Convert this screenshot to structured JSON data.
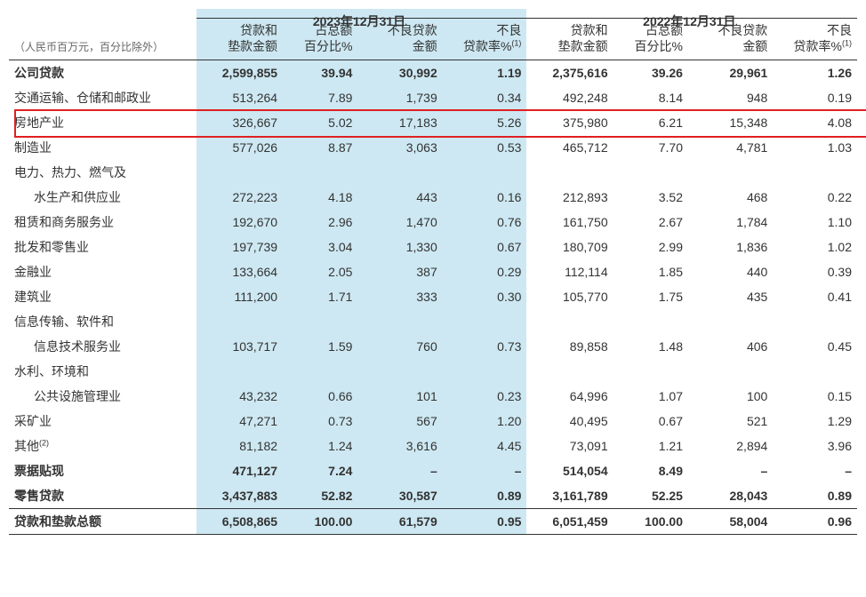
{
  "background_color": "#ffffff",
  "highlight_color": "#cde8f2",
  "redbox_color": "#e02020",
  "border_color": "#333333",
  "font": {
    "family": "Microsoft YaHei, Arial",
    "size_body": 14,
    "size_unit": 12,
    "weight_bold": "bold"
  },
  "unit_label": "（人民币百万元，百分比除外）",
  "periods": {
    "p2023": "2023年12月31日",
    "p2022": "2022年12月31日"
  },
  "col_headers": {
    "loan_amt": [
      "贷款和",
      "垫款金额"
    ],
    "pct_total": [
      "占总额",
      "百分比%"
    ],
    "npl_amt": [
      "不良贷款",
      "金额"
    ],
    "npl_rate": [
      "不良",
      "贷款率%"
    ]
  },
  "sup_note": "(1)",
  "sup_other": "(2)",
  "rows": [
    {
      "k": "corp",
      "label": "公司贷款",
      "bold": true,
      "v": [
        "2,599,855",
        "39.94",
        "30,992",
        "1.19",
        "2,375,616",
        "39.26",
        "29,961",
        "1.26"
      ]
    },
    {
      "k": "trans",
      "label": "交通运输、仓储和邮政业",
      "v": [
        "513,264",
        "7.89",
        "1,739",
        "0.34",
        "492,248",
        "8.14",
        "948",
        "0.19"
      ]
    },
    {
      "k": "re",
      "label": "房地产业",
      "v": [
        "326,667",
        "5.02",
        "17,183",
        "5.26",
        "375,980",
        "6.21",
        "15,348",
        "4.08"
      ],
      "red": true
    },
    {
      "k": "mfg",
      "label": "制造业",
      "v": [
        "577,026",
        "8.87",
        "3,063",
        "0.53",
        "465,712",
        "7.70",
        "4,781",
        "1.03"
      ]
    },
    {
      "k": "util_a",
      "label": "电力、热力、燃气及",
      "v": [
        "",
        "",
        "",
        "",
        "",
        "",
        "",
        ""
      ]
    },
    {
      "k": "util_b",
      "label": "水生产和供应业",
      "indent": true,
      "v": [
        "272,223",
        "4.18",
        "443",
        "0.16",
        "212,893",
        "3.52",
        "468",
        "0.22"
      ]
    },
    {
      "k": "lease",
      "label": "租赁和商务服务业",
      "v": [
        "192,670",
        "2.96",
        "1,470",
        "0.76",
        "161,750",
        "2.67",
        "1,784",
        "1.10"
      ]
    },
    {
      "k": "retail",
      "label": "批发和零售业",
      "v": [
        "197,739",
        "3.04",
        "1,330",
        "0.67",
        "180,709",
        "2.99",
        "1,836",
        "1.02"
      ]
    },
    {
      "k": "fin",
      "label": "金融业",
      "v": [
        "133,664",
        "2.05",
        "387",
        "0.29",
        "112,114",
        "1.85",
        "440",
        "0.39"
      ]
    },
    {
      "k": "constr",
      "label": "建筑业",
      "v": [
        "111,200",
        "1.71",
        "333",
        "0.30",
        "105,770",
        "1.75",
        "435",
        "0.41"
      ]
    },
    {
      "k": "it_a",
      "label": "信息传输、软件和",
      "v": [
        "",
        "",
        "",
        "",
        "",
        "",
        "",
        ""
      ]
    },
    {
      "k": "it_b",
      "label": "信息技术服务业",
      "indent": true,
      "v": [
        "103,717",
        "1.59",
        "760",
        "0.73",
        "89,858",
        "1.48",
        "406",
        "0.45"
      ]
    },
    {
      "k": "water_a",
      "label": "水利、环境和",
      "v": [
        "",
        "",
        "",
        "",
        "",
        "",
        "",
        ""
      ]
    },
    {
      "k": "water_b",
      "label": "公共设施管理业",
      "indent": true,
      "v": [
        "43,232",
        "0.66",
        "101",
        "0.23",
        "64,996",
        "1.07",
        "100",
        "0.15"
      ]
    },
    {
      "k": "mining",
      "label": "采矿业",
      "v": [
        "47,271",
        "0.73",
        "567",
        "1.20",
        "40,495",
        "0.67",
        "521",
        "1.29"
      ]
    },
    {
      "k": "other",
      "label": "其他",
      "sup": "(2)",
      "v": [
        "81,182",
        "1.24",
        "3,616",
        "4.45",
        "73,091",
        "1.21",
        "2,894",
        "3.96"
      ]
    },
    {
      "k": "bill",
      "label": "票据贴现",
      "bold": true,
      "v": [
        "471,127",
        "7.24",
        "–",
        "–",
        "514,054",
        "8.49",
        "–",
        "–"
      ]
    },
    {
      "k": "retail_loan",
      "label": "零售贷款",
      "bold": true,
      "v": [
        "3,437,883",
        "52.82",
        "30,587",
        "0.89",
        "3,161,789",
        "52.25",
        "28,043",
        "0.89"
      ]
    },
    {
      "k": "total",
      "label": "贷款和垫款总额",
      "bold": true,
      "top": true,
      "bot": true,
      "v": [
        "6,508,865",
        "100.00",
        "61,579",
        "0.95",
        "6,051,459",
        "100.00",
        "58,004",
        "0.96"
      ]
    }
  ]
}
